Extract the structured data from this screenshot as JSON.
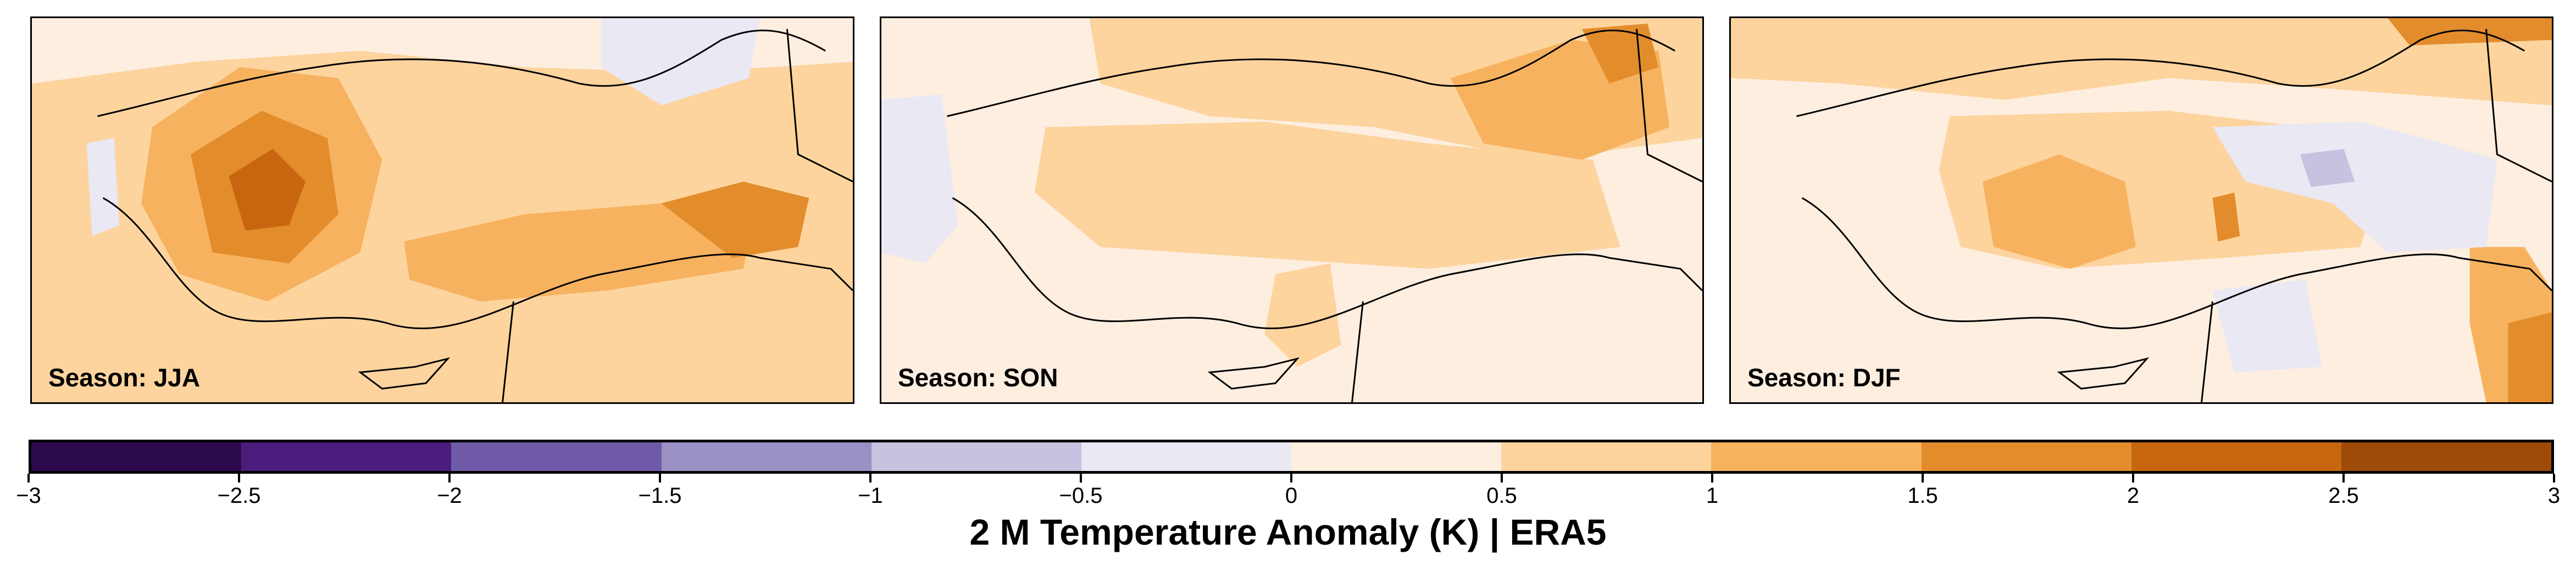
{
  "panels": [
    {
      "label": "Season: JJA"
    },
    {
      "label": "Season: SON"
    },
    {
      "label": "Season: DJF"
    }
  ],
  "colorbar": {
    "title": "2 M Temperature Anomaly (K) | ERA5",
    "ticks": [
      "−3",
      "−2.5",
      "−2",
      "−1.5",
      "−1",
      "−0.5",
      "0",
      "0.5",
      "1",
      "1.5",
      "2",
      "2.5",
      "3"
    ],
    "colors": [
      "#2d0a4e",
      "#4a1d7c",
      "#6f5aa7",
      "#9a90c4",
      "#c5c3df",
      "#e9e8f3",
      "#fdeee0",
      "#fdd49e",
      "#f7b25f",
      "#e38c2c",
      "#c7660f",
      "#9e4a09"
    ]
  },
  "map_palette": {
    "sea": "#fdeee0",
    "weak_warm": "#fdd49e",
    "mid_warm": "#f7b25f",
    "strong_warm": "#e38c2c",
    "very_strong_warm": "#c7660f",
    "weak_cool": "#e9e8f3",
    "mid_cool": "#c5c3df"
  }
}
